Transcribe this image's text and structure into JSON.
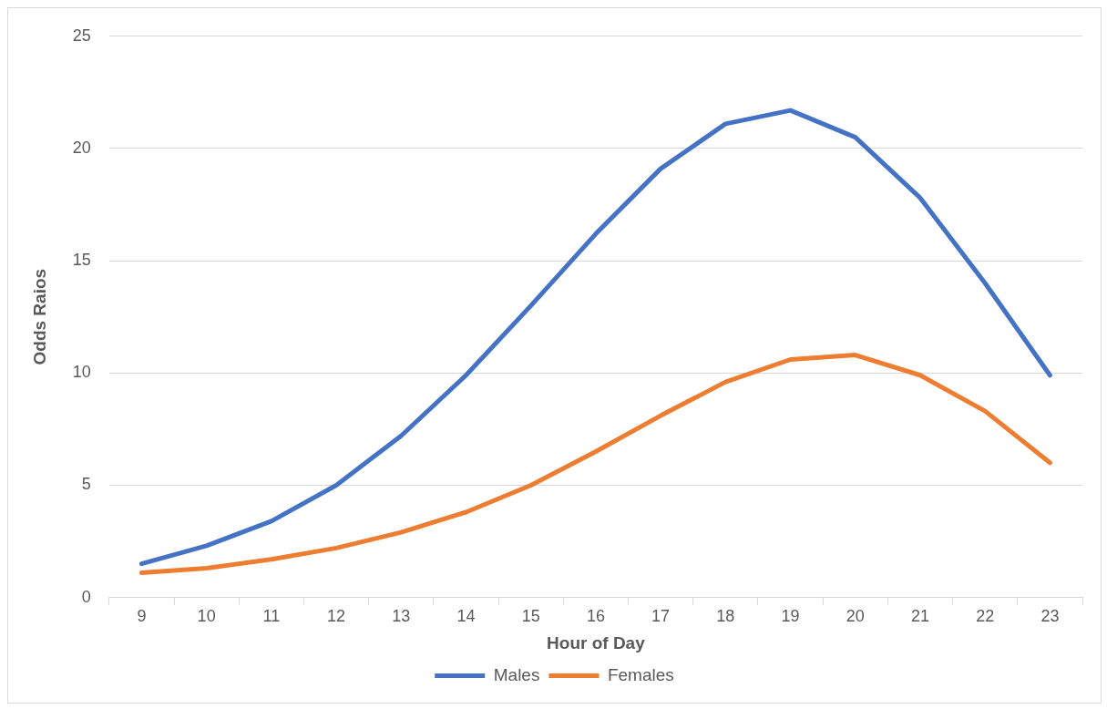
{
  "chart_data": {
    "type": "line",
    "xlabel": "Hour of Day",
    "ylabel": "Odds Raios",
    "categories": [
      "9",
      "10",
      "11",
      "12",
      "13",
      "14",
      "15",
      "16",
      "17",
      "18",
      "19",
      "20",
      "21",
      "22",
      "23"
    ],
    "series": [
      {
        "name": "Males",
        "color": "#4472c4",
        "values": [
          1.5,
          2.3,
          3.4,
          5.0,
          7.2,
          9.9,
          13.0,
          16.2,
          19.1,
          21.1,
          21.7,
          20.5,
          17.8,
          14.0,
          9.9
        ]
      },
      {
        "name": "Females",
        "color": "#ed7d31",
        "values": [
          1.1,
          1.3,
          1.7,
          2.2,
          2.9,
          3.8,
          5.0,
          6.5,
          8.1,
          9.6,
          10.6,
          10.8,
          9.9,
          8.3,
          6.0
        ]
      }
    ],
    "ylim": [
      0,
      25
    ],
    "yticks": [
      0,
      5,
      10,
      15,
      20,
      25
    ],
    "grid": "y",
    "legend": "bottom",
    "marker": "none",
    "line_style": "solid"
  }
}
